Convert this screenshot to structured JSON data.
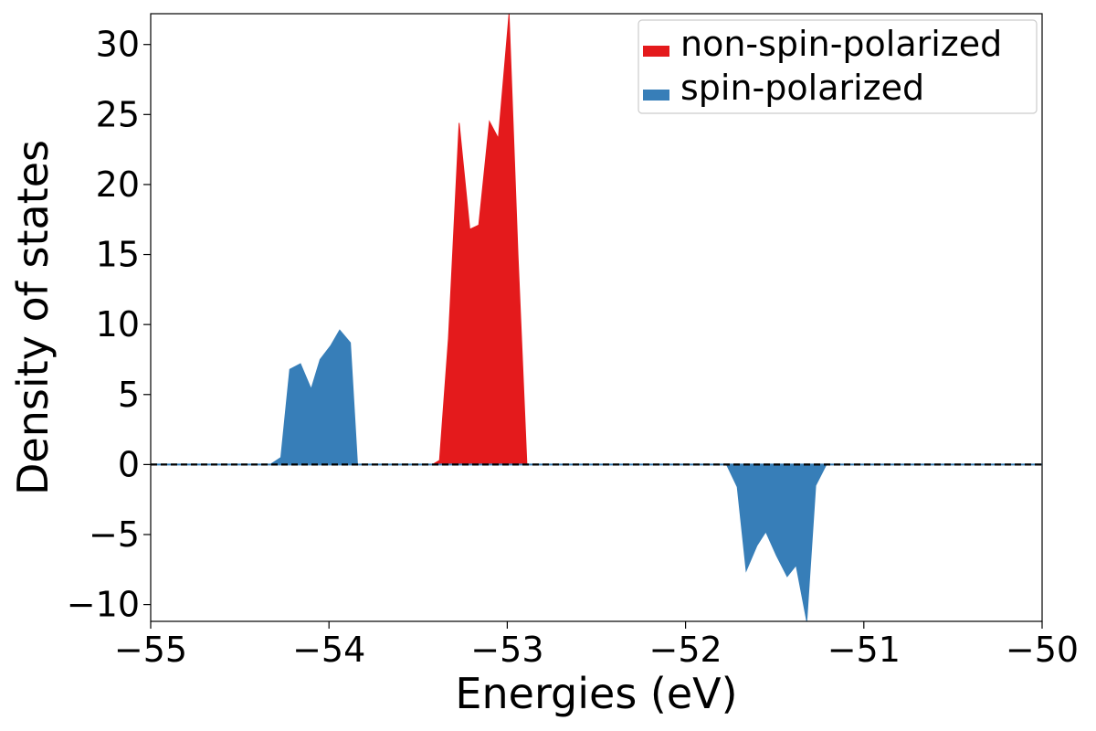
{
  "chart_data": {
    "type": "area",
    "title": "",
    "xlabel": "Energies (eV)",
    "ylabel": "Density of states",
    "xlim": [
      -55,
      -50
    ],
    "ylim": [
      -11.2,
      32.2
    ],
    "xticks": [
      -55,
      -54,
      -53,
      -52,
      -51,
      -50
    ],
    "xtick_labels": [
      "−55",
      "−54",
      "−53",
      "−52",
      "−51",
      "−50"
    ],
    "yticks": [
      -10,
      -5,
      0,
      5,
      10,
      15,
      20,
      25,
      30
    ],
    "ytick_labels": [
      "−10",
      "−5",
      "0",
      "5",
      "10",
      "15",
      "20",
      "25",
      "30"
    ],
    "zero_line": {
      "y": 0,
      "style": "dashed"
    },
    "legend": {
      "position": "top-right",
      "entries": [
        "non-spin-polarized",
        "spin-polarized"
      ]
    },
    "colors": {
      "non_spin_polarized": "#e41a1c",
      "spin_polarized": "#377eb8",
      "axis": "#000000"
    },
    "series": [
      {
        "name": "non-spin-polarized",
        "color": "#e41a1c",
        "x": [
          -53.42,
          -53.38,
          -53.33,
          -53.27,
          -53.21,
          -53.16,
          -53.1,
          -53.05,
          -52.99,
          -52.94,
          -52.89
        ],
        "y": [
          0,
          0.3,
          9.0,
          24.4,
          16.8,
          17.1,
          24.5,
          23.3,
          32.2,
          15.0,
          0
        ]
      },
      {
        "name": "spin-polarized",
        "color": "#377eb8",
        "x": [
          -54.33,
          -54.27,
          -54.22,
          -54.16,
          -54.1,
          -54.05,
          -53.99,
          -53.94,
          -53.88,
          -53.84
        ],
        "y": [
          0,
          0.5,
          6.8,
          7.2,
          5.4,
          7.5,
          8.5,
          9.6,
          8.7,
          0
        ]
      },
      {
        "name": "spin-polarized-down",
        "color": "#377eb8",
        "x": [
          -51.77,
          -51.71,
          -51.66,
          -51.6,
          -51.55,
          -51.49,
          -51.43,
          -51.38,
          -51.32,
          -51.27,
          -51.21
        ],
        "y": [
          0,
          -1.6,
          -7.6,
          -5.8,
          -4.8,
          -6.5,
          -8.0,
          -7.2,
          -11.2,
          -1.5,
          0
        ]
      }
    ]
  }
}
